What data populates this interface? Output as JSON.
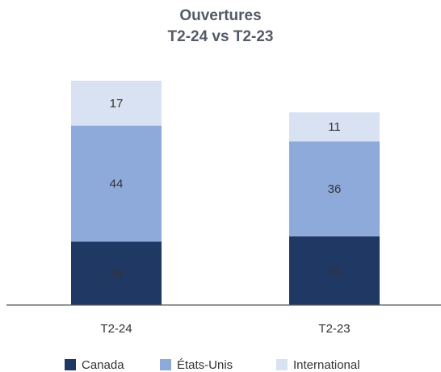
{
  "chart_data": {
    "type": "stacked_bar",
    "title": "Ouvertures",
    "subtitle": "T2-24 vs T2-23",
    "categories": [
      "T2-24",
      "T2-23"
    ],
    "series": [
      {
        "name": "Canada",
        "color": "#203864",
        "values": [
          24,
          26
        ]
      },
      {
        "name": "États-Unis",
        "color": "#8eaadb",
        "values": [
          44,
          36
        ]
      },
      {
        "name": "International",
        "color": "#d9e2f3",
        "values": [
          17,
          11
        ]
      }
    ],
    "legend": "bottom"
  }
}
